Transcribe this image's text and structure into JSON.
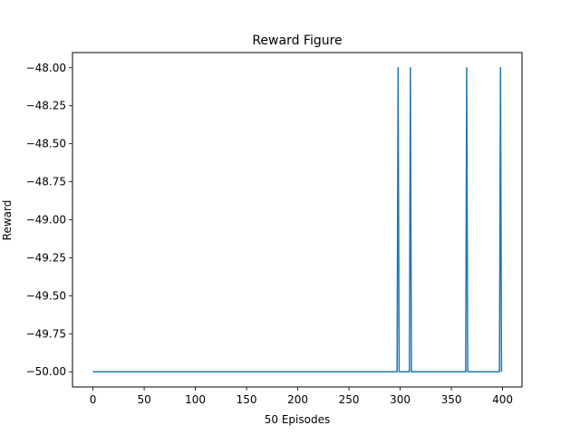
{
  "chart_data": {
    "type": "line",
    "title": "Reward Figure",
    "xlabel": "50 Episodes",
    "ylabel": "Reward",
    "xlim": [
      -20,
      419
    ],
    "ylim": [
      -50.1,
      -47.9
    ],
    "x_ticks": [
      0,
      50,
      100,
      150,
      200,
      250,
      300,
      350,
      400
    ],
    "x_tick_labels": [
      "0",
      "50",
      "100",
      "150",
      "200",
      "250",
      "300",
      "350",
      "400"
    ],
    "y_ticks": [
      -48.0,
      -48.25,
      -48.5,
      -48.75,
      -49.0,
      -49.25,
      -49.5,
      -49.75,
      -50.0
    ],
    "y_tick_labels": [
      "−48.00",
      "−48.25",
      "−48.50",
      "−48.75",
      "−49.00",
      "−49.25",
      "−49.50",
      "−49.75",
      "−50.00"
    ],
    "grid": false,
    "series": [
      {
        "color": "#1f77b4",
        "x": [
          0,
          297,
          298,
          299,
          309,
          310,
          311,
          364,
          365,
          366,
          397,
          398,
          399
        ],
        "y": [
          -50,
          -50,
          -48,
          -50,
          -50,
          -48,
          -50,
          -50,
          -48,
          -50,
          -50,
          -48,
          -50
        ]
      }
    ]
  }
}
